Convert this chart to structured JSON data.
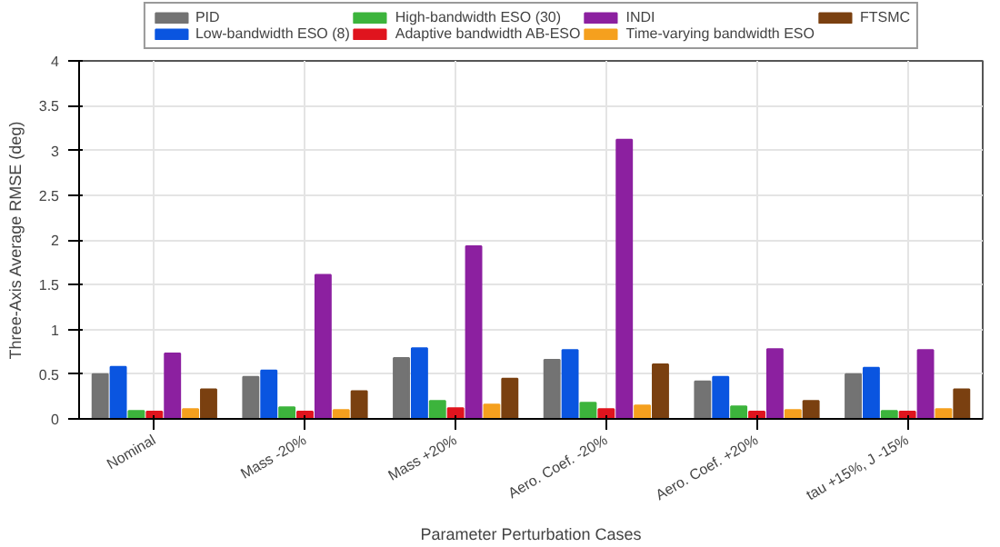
{
  "chart_data": {
    "type": "bar",
    "xlabel": "Parameter Perturbation Cases",
    "ylabel": "Three-Axis Average RMSE (deg)",
    "categories": [
      "Nominal",
      "Mass -20%",
      "Mass +20%",
      "Aero. Coef. -20%",
      "Aero. Coef. +20%",
      "tau +15%, J -15%"
    ],
    "series": [
      {
        "name": "PID",
        "color": "#737373",
        "values": [
          0.5,
          0.47,
          0.68,
          0.66,
          0.42,
          0.5
        ]
      },
      {
        "name": "Low-bandwidth ESO (8)",
        "color": "#0a55e0",
        "values": [
          0.58,
          0.54,
          0.79,
          0.77,
          0.47,
          0.57
        ]
      },
      {
        "name": "High-bandwidth ESO (30)",
        "color": "#3cb43c",
        "values": [
          0.09,
          0.13,
          0.2,
          0.18,
          0.14,
          0.09
        ]
      },
      {
        "name": "Adaptive bandwidth AB-ESO",
        "color": "#e0141e",
        "values": [
          0.08,
          0.08,
          0.12,
          0.11,
          0.08,
          0.08
        ]
      },
      {
        "name": "INDI",
        "color": "#8c20a0",
        "values": [
          0.73,
          1.61,
          1.93,
          3.12,
          0.78,
          0.77
        ]
      },
      {
        "name": "Time-varying bandwidth ESO",
        "color": "#f5a01e",
        "values": [
          0.11,
          0.1,
          0.16,
          0.15,
          0.1,
          0.11
        ]
      },
      {
        "name": "FTSMC",
        "color": "#7a4010",
        "values": [
          0.33,
          0.31,
          0.45,
          0.61,
          0.2,
          0.33
        ]
      }
    ],
    "ylim": [
      0,
      4
    ],
    "yticks": [
      0,
      0.5,
      1,
      1.5,
      2,
      2.5,
      3,
      3.5,
      4
    ],
    "grid": true,
    "legend": "top"
  }
}
